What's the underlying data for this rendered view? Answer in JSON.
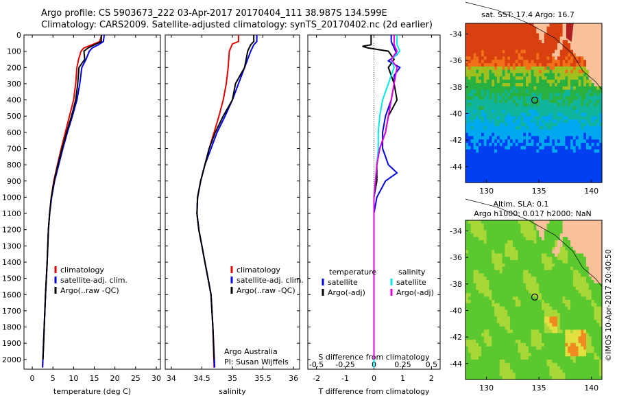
{
  "header": {
    "line1": "Argo profile: CS 5903673_222 03-Apr-2017 20170404_111 38.987S 134.599E",
    "line2": "Climatology: CARS2009. Satellite-adjusted climatology: synTS_20170402.nc (2d earlier)"
  },
  "colors": {
    "red": "#e00000",
    "blue": "#0000e0",
    "black": "#000000",
    "cyan": "#00e8e8",
    "magenta": "#e000e0",
    "land": "#f9c09a"
  },
  "chart_data": [
    {
      "type": "line",
      "xlabel": "temperature (deg C)",
      "xlim": [
        -2,
        31
      ],
      "ylim": [
        2060,
        0
      ],
      "xticks": [
        0,
        5,
        10,
        15,
        20,
        25,
        30
      ],
      "yticks": [
        0,
        100,
        200,
        300,
        400,
        500,
        600,
        700,
        800,
        900,
        1000,
        1100,
        1200,
        1300,
        1400,
        1500,
        1600,
        1700,
        1800,
        1900,
        2000
      ],
      "legend": [
        "climatology",
        "satellite-adj. clim.",
        "Argo(..raw -QC)"
      ],
      "series": [
        {
          "name": "climatology",
          "color": "#e00000",
          "points": [
            [
              16.8,
              0
            ],
            [
              16.3,
              40
            ],
            [
              14.5,
              60
            ],
            [
              12.5,
              80
            ],
            [
              11.8,
              100
            ],
            [
              11.2,
              150
            ],
            [
              10.8,
              200
            ],
            [
              10.5,
              300
            ],
            [
              10,
              400
            ],
            [
              9,
              500
            ],
            [
              8,
              600
            ],
            [
              7,
              700
            ],
            [
              6.1,
              800
            ],
            [
              5.2,
              900
            ],
            [
              4.6,
              1000
            ],
            [
              4.2,
              1100
            ],
            [
              3.9,
              1200
            ],
            [
              3.6,
              1400
            ],
            [
              3.2,
              1600
            ],
            [
              2.9,
              1800
            ],
            [
              2.5,
              2050
            ]
          ]
        },
        {
          "name": "satellite-adj. clim.",
          "color": "#0000e0",
          "points": [
            [
              17.4,
              0
            ],
            [
              17.2,
              40
            ],
            [
              16,
              60
            ],
            [
              14.5,
              80
            ],
            [
              13.8,
              100
            ],
            [
              13,
              150
            ],
            [
              12,
              200
            ],
            [
              11.5,
              300
            ],
            [
              10.8,
              400
            ],
            [
              9.7,
              500
            ],
            [
              8.5,
              600
            ],
            [
              7.4,
              700
            ],
            [
              6.4,
              800
            ],
            [
              5.4,
              900
            ],
            [
              4.7,
              1000
            ],
            [
              4.2,
              1100
            ],
            [
              3.9,
              1200
            ],
            [
              3.6,
              1400
            ],
            [
              3.2,
              1600
            ],
            [
              2.9,
              1800
            ],
            [
              2.5,
              2050
            ]
          ]
        },
        {
          "name": "Argo(..raw -QC)",
          "color": "#000000",
          "points": [
            [
              16.7,
              0
            ],
            [
              16.7,
              40
            ],
            [
              15.5,
              55
            ],
            [
              13.5,
              80
            ],
            [
              12.5,
              100
            ],
            [
              12.7,
              150
            ],
            [
              11.3,
              200
            ],
            [
              11,
              300
            ],
            [
              10.5,
              400
            ],
            [
              9.5,
              500
            ],
            [
              8.3,
              600
            ],
            [
              7.2,
              700
            ],
            [
              6.2,
              800
            ],
            [
              5.3,
              900
            ],
            [
              4.6,
              1000
            ],
            [
              4.2,
              1100
            ],
            [
              3.9,
              1200
            ],
            [
              3.6,
              1400
            ],
            [
              3.2,
              1600
            ],
            [
              2.9,
              1800
            ],
            [
              2.6,
              2000
            ]
          ]
        }
      ]
    },
    {
      "type": "line",
      "xlabel": "salinity",
      "xlim": [
        33.9,
        36.1
      ],
      "ylim": [
        2060,
        0
      ],
      "xticks": [
        34,
        34.5,
        35,
        35.5,
        36
      ],
      "legend": [
        "climatology",
        "satellite-adj. clim.",
        "Argo(..raw -QC)"
      ],
      "annotation": [
        "Argo Australia",
        "PI: Susan Wijffels"
      ],
      "series": [
        {
          "name": "climatology",
          "color": "#e00000",
          "points": [
            [
              35.1,
              0
            ],
            [
              35.1,
              40
            ],
            [
              35,
              55
            ],
            [
              34.95,
              100
            ],
            [
              34.93,
              200
            ],
            [
              34.9,
              300
            ],
            [
              34.85,
              400
            ],
            [
              34.78,
              500
            ],
            [
              34.7,
              600
            ],
            [
              34.62,
              700
            ],
            [
              34.55,
              800
            ],
            [
              34.48,
              900
            ],
            [
              34.43,
              1000
            ],
            [
              34.42,
              1100
            ],
            [
              34.45,
              1200
            ],
            [
              34.5,
              1300
            ],
            [
              34.55,
              1400
            ],
            [
              34.6,
              1500
            ],
            [
              34.65,
              1600
            ],
            [
              34.68,
              1800
            ],
            [
              34.7,
              2050
            ]
          ]
        },
        {
          "name": "satellite-adj. clim.",
          "color": "#0000e0",
          "points": [
            [
              35.4,
              0
            ],
            [
              35.4,
              40
            ],
            [
              35.35,
              60
            ],
            [
              35.3,
              100
            ],
            [
              35.2,
              200
            ],
            [
              35.1,
              300
            ],
            [
              35,
              400
            ],
            [
              34.88,
              500
            ],
            [
              34.75,
              600
            ],
            [
              34.65,
              700
            ],
            [
              34.55,
              800
            ],
            [
              34.48,
              900
            ],
            [
              34.43,
              1000
            ],
            [
              34.42,
              1100
            ],
            [
              34.45,
              1200
            ],
            [
              34.5,
              1300
            ],
            [
              34.55,
              1400
            ],
            [
              34.6,
              1500
            ],
            [
              34.65,
              1600
            ],
            [
              34.68,
              1800
            ],
            [
              34.71,
              2050
            ]
          ]
        },
        {
          "name": "Argo(..raw -QC)",
          "color": "#000000",
          "points": [
            [
              35.35,
              0
            ],
            [
              35.35,
              40
            ],
            [
              35.3,
              60
            ],
            [
              35.25,
              100
            ],
            [
              35.2,
              200
            ],
            [
              35.05,
              300
            ],
            [
              35,
              400
            ],
            [
              34.85,
              500
            ],
            [
              34.72,
              600
            ],
            [
              34.62,
              700
            ],
            [
              34.55,
              800
            ],
            [
              34.48,
              900
            ],
            [
              34.43,
              1000
            ],
            [
              34.42,
              1100
            ],
            [
              34.45,
              1200
            ],
            [
              34.5,
              1300
            ],
            [
              34.55,
              1400
            ],
            [
              34.6,
              1500
            ],
            [
              34.65,
              1600
            ],
            [
              34.68,
              1800
            ],
            [
              34.7,
              2000
            ]
          ]
        }
      ]
    },
    {
      "type": "line",
      "xlabel": "T difference from climatology",
      "xlabel_top": "S difference from climatology",
      "xlim": [
        -2.3,
        2.3
      ],
      "ylim": [
        2060,
        0
      ],
      "xticks": [
        -2,
        -1,
        0,
        1,
        2
      ],
      "xticklabels_top": [
        "-0.5",
        "-0.25",
        "0",
        "0.25",
        "0.5"
      ],
      "legend_headers": [
        "temperature",
        "salinity"
      ],
      "legend": [
        "satellite",
        "Argo(-adj)",
        "satellite",
        "Argo(-adj)"
      ],
      "series": [
        {
          "name": "satellite",
          "color": "#0000e0",
          "points": [
            [
              0.6,
              0
            ],
            [
              0.6,
              40
            ],
            [
              0.7,
              80
            ],
            [
              0.8,
              120
            ],
            [
              0.5,
              160
            ],
            [
              0.9,
              200
            ],
            [
              0.7,
              250
            ],
            [
              0.7,
              300
            ],
            [
              0.6,
              400
            ],
            [
              0.4,
              500
            ],
            [
              0.3,
              600
            ],
            [
              0.3,
              700
            ],
            [
              0.5,
              800
            ],
            [
              0.8,
              850
            ],
            [
              0.4,
              900
            ],
            [
              0.1,
              1000
            ],
            [
              0,
              1100
            ],
            [
              0,
              1300
            ],
            [
              0,
              1600
            ],
            [
              0,
              2050
            ]
          ]
        },
        {
          "name": "Argo(-adj)",
          "color": "#000000",
          "points": [
            [
              -0.1,
              0
            ],
            [
              -0.1,
              60
            ],
            [
              -0.4,
              70
            ],
            [
              -0.2,
              80
            ],
            [
              0.5,
              100
            ],
            [
              0.7,
              150
            ],
            [
              0.5,
              200
            ],
            [
              0.7,
              300
            ],
            [
              0.8,
              400
            ],
            [
              0.5,
              500
            ],
            [
              0.4,
              600
            ],
            [
              0.2,
              700
            ],
            [
              0.1,
              800
            ],
            [
              0.1,
              900
            ],
            [
              0,
              1000
            ],
            [
              0,
              1200
            ],
            [
              0,
              1600
            ],
            [
              0,
              2000
            ]
          ]
        },
        {
          "name": "satellite",
          "color": "#00e8e8",
          "points": [
            [
              0.8,
              0
            ],
            [
              0.8,
              60
            ],
            [
              0.9,
              100
            ],
            [
              0.6,
              150
            ],
            [
              0.7,
              200
            ],
            [
              0.5,
              300
            ],
            [
              0.3,
              400
            ],
            [
              0.2,
              500
            ],
            [
              0.15,
              600
            ],
            [
              0.15,
              700
            ],
            [
              0.05,
              900
            ],
            [
              0,
              1000
            ],
            [
              0,
              1300
            ],
            [
              0,
              1600
            ],
            [
              0,
              2050
            ]
          ]
        },
        {
          "name": "Argo(-adj)",
          "color": "#e000e0",
          "points": [
            [
              0.7,
              0
            ],
            [
              0.7,
              60
            ],
            [
              0.8,
              100
            ],
            [
              0.6,
              150
            ],
            [
              0.8,
              200
            ],
            [
              0.7,
              300
            ],
            [
              0.6,
              400
            ],
            [
              0.5,
              500
            ],
            [
              0.4,
              600
            ],
            [
              0.2,
              700
            ],
            [
              0.1,
              800
            ],
            [
              0,
              1000
            ],
            [
              0,
              1300
            ],
            [
              0,
              1600
            ],
            [
              0,
              2000
            ]
          ]
        }
      ]
    },
    {
      "type": "heatmap",
      "title": "sat. SST: 17.4  Argo: 16.7",
      "xlim": [
        128,
        141
      ],
      "ylim": [
        -45.2,
        -33.2
      ],
      "xticks": [
        130,
        135,
        140
      ],
      "yticks": [
        -34,
        -36,
        -38,
        -40,
        -42,
        -44
      ],
      "marker": [
        134.599,
        -38.987
      ]
    },
    {
      "type": "heatmap",
      "title": "Altim. SLA: 0.1",
      "subtitle": "Argo h1000: 0.017 h2000: NaN",
      "xlim": [
        128,
        141
      ],
      "ylim": [
        -45.2,
        -33.2
      ],
      "xticks": [
        130,
        135,
        140
      ],
      "yticks": [
        -34,
        -36,
        -38,
        -40,
        -42,
        -44
      ],
      "marker": [
        134.599,
        -38.987
      ]
    }
  ],
  "credit": "©IMOS 10-Apr-2017 20:40:50"
}
